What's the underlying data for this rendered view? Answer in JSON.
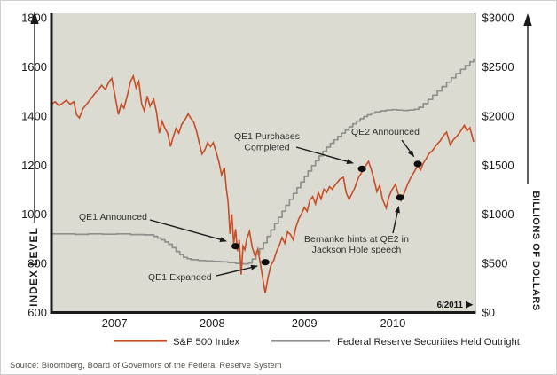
{
  "figure": {
    "source_note": "Source:  Bloomberg, Board of Governors of the Federal Reserve System",
    "end_marker": "6/2011"
  },
  "colors": {
    "plot_background": "#dbdbd2",
    "axis": "#1a1a1a",
    "sp500": "#c64d26",
    "fed": "#8f8f8b",
    "annotation": "#1a1a1a"
  },
  "axes": {
    "left": {
      "title": "INDEX LEVEL",
      "ticks": [
        "1800",
        "1600",
        "1400",
        "1200",
        "1000",
        "800",
        "600"
      ]
    },
    "right": {
      "title": "BILLIONS OF DOLLARS",
      "ticks": [
        "$3000",
        "$2500",
        "$2000",
        "$1500",
        "$1000",
        "$500",
        "$0"
      ]
    },
    "x": {
      "ticks": [
        "2007",
        "2008",
        "2009",
        "2010"
      ]
    }
  },
  "legend": [
    {
      "label": "S&P 500 Index",
      "color": "#c64d26"
    },
    {
      "label": "Federal Reserve Securities Held Outright",
      "color": "#8f8f8b"
    }
  ],
  "chart_data": {
    "type": "line",
    "title": "",
    "x_range": [
      2006.9,
      2011.45
    ],
    "grid": false,
    "legend_position": "bottom",
    "series": [
      {
        "name": "S&P 500 Index",
        "axis": "left",
        "ylim": [
          600,
          1800
        ],
        "color": "#c64d26",
        "style": "line",
        "points": [
          [
            2006.9,
            1448
          ],
          [
            2006.94,
            1458
          ],
          [
            2006.98,
            1442
          ],
          [
            2007.02,
            1452
          ],
          [
            2007.06,
            1464
          ],
          [
            2007.1,
            1448
          ],
          [
            2007.14,
            1458
          ],
          [
            2007.17,
            1405
          ],
          [
            2007.2,
            1392
          ],
          [
            2007.24,
            1430
          ],
          [
            2007.28,
            1448
          ],
          [
            2007.32,
            1468
          ],
          [
            2007.36,
            1488
          ],
          [
            2007.4,
            1505
          ],
          [
            2007.44,
            1525
          ],
          [
            2007.48,
            1508
          ],
          [
            2007.52,
            1540
          ],
          [
            2007.55,
            1553
          ],
          [
            2007.58,
            1490
          ],
          [
            2007.62,
            1406
          ],
          [
            2007.65,
            1448
          ],
          [
            2007.68,
            1432
          ],
          [
            2007.72,
            1490
          ],
          [
            2007.75,
            1540
          ],
          [
            2007.78,
            1562
          ],
          [
            2007.81,
            1515
          ],
          [
            2007.84,
            1540
          ],
          [
            2007.87,
            1450
          ],
          [
            2007.9,
            1420
          ],
          [
            2007.93,
            1481
          ],
          [
            2007.96,
            1440
          ],
          [
            2008.0,
            1468
          ],
          [
            2008.03,
            1415
          ],
          [
            2008.06,
            1330
          ],
          [
            2008.09,
            1378
          ],
          [
            2008.12,
            1350
          ],
          [
            2008.15,
            1330
          ],
          [
            2008.18,
            1276
          ],
          [
            2008.21,
            1315
          ],
          [
            2008.24,
            1350
          ],
          [
            2008.27,
            1330
          ],
          [
            2008.3,
            1365
          ],
          [
            2008.34,
            1388
          ],
          [
            2008.37,
            1408
          ],
          [
            2008.4,
            1390
          ],
          [
            2008.43,
            1375
          ],
          [
            2008.46,
            1340
          ],
          [
            2008.49,
            1290
          ],
          [
            2008.52,
            1245
          ],
          [
            2008.55,
            1262
          ],
          [
            2008.58,
            1292
          ],
          [
            2008.61,
            1275
          ],
          [
            2008.64,
            1292
          ],
          [
            2008.67,
            1255
          ],
          [
            2008.7,
            1215
          ],
          [
            2008.73,
            1160
          ],
          [
            2008.76,
            1190
          ],
          [
            2008.78,
            1106
          ],
          [
            2008.8,
            1050
          ],
          [
            2008.82,
            920
          ],
          [
            2008.84,
            1000
          ],
          [
            2008.86,
            880
          ],
          [
            2008.88,
            940
          ],
          [
            2008.9,
            850
          ],
          [
            2008.92,
            895
          ],
          [
            2008.94,
            755
          ],
          [
            2008.96,
            870
          ],
          [
            2008.98,
            855
          ],
          [
            2009.0,
            900
          ],
          [
            2009.03,
            930
          ],
          [
            2009.06,
            865
          ],
          [
            2009.09,
            828
          ],
          [
            2009.12,
            858
          ],
          [
            2009.15,
            792
          ],
          [
            2009.18,
            722
          ],
          [
            2009.2,
            680
          ],
          [
            2009.23,
            745
          ],
          [
            2009.26,
            792
          ],
          [
            2009.29,
            812
          ],
          [
            2009.32,
            848
          ],
          [
            2009.35,
            872
          ],
          [
            2009.38,
            905
          ],
          [
            2009.41,
            882
          ],
          [
            2009.44,
            928
          ],
          [
            2009.47,
            918
          ],
          [
            2009.5,
            896
          ],
          [
            2009.53,
            948
          ],
          [
            2009.56,
            982
          ],
          [
            2009.59,
            1002
          ],
          [
            2009.62,
            1028
          ],
          [
            2009.65,
            1012
          ],
          [
            2009.68,
            1058
          ],
          [
            2009.71,
            1072
          ],
          [
            2009.74,
            1042
          ],
          [
            2009.77,
            1088
          ],
          [
            2009.8,
            1062
          ],
          [
            2009.83,
            1102
          ],
          [
            2009.86,
            1088
          ],
          [
            2009.89,
            1112
          ],
          [
            2009.92,
            1102
          ],
          [
            2009.95,
            1118
          ],
          [
            2010.0,
            1142
          ],
          [
            2010.04,
            1150
          ],
          [
            2010.07,
            1088
          ],
          [
            2010.1,
            1060
          ],
          [
            2010.13,
            1082
          ],
          [
            2010.16,
            1106
          ],
          [
            2010.2,
            1148
          ],
          [
            2010.24,
            1172
          ],
          [
            2010.27,
            1192
          ],
          [
            2010.31,
            1215
          ],
          [
            2010.34,
            1182
          ],
          [
            2010.37,
            1140
          ],
          [
            2010.4,
            1092
          ],
          [
            2010.43,
            1118
          ],
          [
            2010.46,
            1062
          ],
          [
            2010.5,
            1025
          ],
          [
            2010.53,
            1072
          ],
          [
            2010.56,
            1098
          ],
          [
            2010.6,
            1122
          ],
          [
            2010.63,
            1082
          ],
          [
            2010.66,
            1056
          ],
          [
            2010.7,
            1092
          ],
          [
            2010.73,
            1122
          ],
          [
            2010.76,
            1146
          ],
          [
            2010.8,
            1172
          ],
          [
            2010.84,
            1198
          ],
          [
            2010.87,
            1180
          ],
          [
            2010.9,
            1208
          ],
          [
            2010.93,
            1226
          ],
          [
            2010.96,
            1246
          ],
          [
            2011.0,
            1260
          ],
          [
            2011.04,
            1282
          ],
          [
            2011.08,
            1298
          ],
          [
            2011.12,
            1322
          ],
          [
            2011.15,
            1334
          ],
          [
            2011.19,
            1282
          ],
          [
            2011.22,
            1302
          ],
          [
            2011.26,
            1318
          ],
          [
            2011.3,
            1338
          ],
          [
            2011.34,
            1362
          ],
          [
            2011.37,
            1340
          ],
          [
            2011.4,
            1352
          ],
          [
            2011.44,
            1295
          ]
        ]
      },
      {
        "name": "Federal Reserve Securities Held Outright",
        "axis": "right",
        "ylim": [
          0,
          3000
        ],
        "color": "#8f8f8b",
        "style": "step",
        "points": [
          [
            2006.9,
            800
          ],
          [
            2007.05,
            800
          ],
          [
            2007.15,
            795
          ],
          [
            2007.3,
            800
          ],
          [
            2007.45,
            797
          ],
          [
            2007.6,
            800
          ],
          [
            2007.75,
            793
          ],
          [
            2007.9,
            790
          ],
          [
            2008.0,
            775
          ],
          [
            2008.04,
            758
          ],
          [
            2008.08,
            740
          ],
          [
            2008.12,
            718
          ],
          [
            2008.16,
            695
          ],
          [
            2008.2,
            660
          ],
          [
            2008.24,
            622
          ],
          [
            2008.28,
            588
          ],
          [
            2008.32,
            562
          ],
          [
            2008.36,
            548
          ],
          [
            2008.4,
            538
          ],
          [
            2008.48,
            530
          ],
          [
            2008.56,
            524
          ],
          [
            2008.64,
            520
          ],
          [
            2008.72,
            516
          ],
          [
            2008.8,
            508
          ],
          [
            2008.88,
            500
          ],
          [
            2008.96,
            494
          ],
          [
            2009.02,
            505
          ],
          [
            2009.06,
            545
          ],
          [
            2009.1,
            592
          ],
          [
            2009.14,
            648
          ],
          [
            2009.18,
            710
          ],
          [
            2009.22,
            775
          ],
          [
            2009.26,
            840
          ],
          [
            2009.3,
            905
          ],
          [
            2009.34,
            968
          ],
          [
            2009.38,
            1030
          ],
          [
            2009.42,
            1092
          ],
          [
            2009.46,
            1152
          ],
          [
            2009.5,
            1212
          ],
          [
            2009.54,
            1270
          ],
          [
            2009.58,
            1328
          ],
          [
            2009.62,
            1385
          ],
          [
            2009.66,
            1440
          ],
          [
            2009.7,
            1495
          ],
          [
            2009.74,
            1545
          ],
          [
            2009.78,
            1594
          ],
          [
            2009.82,
            1640
          ],
          [
            2009.86,
            1683
          ],
          [
            2009.9,
            1722
          ],
          [
            2009.94,
            1758
          ],
          [
            2009.98,
            1792
          ],
          [
            2010.02,
            1825
          ],
          [
            2010.06,
            1858
          ],
          [
            2010.1,
            1890
          ],
          [
            2010.14,
            1920
          ],
          [
            2010.18,
            1948
          ],
          [
            2010.22,
            1972
          ],
          [
            2010.26,
            1994
          ],
          [
            2010.3,
            2012
          ],
          [
            2010.34,
            2028
          ],
          [
            2010.38,
            2042
          ],
          [
            2010.44,
            2052
          ],
          [
            2010.5,
            2060
          ],
          [
            2010.56,
            2064
          ],
          [
            2010.62,
            2060
          ],
          [
            2010.68,
            2056
          ],
          [
            2010.74,
            2060
          ],
          [
            2010.8,
            2068
          ],
          [
            2010.85,
            2088
          ],
          [
            2010.9,
            2126
          ],
          [
            2010.95,
            2168
          ],
          [
            2011.0,
            2212
          ],
          [
            2011.05,
            2256
          ],
          [
            2011.1,
            2300
          ],
          [
            2011.15,
            2344
          ],
          [
            2011.2,
            2388
          ],
          [
            2011.25,
            2432
          ],
          [
            2011.3,
            2474
          ],
          [
            2011.35,
            2514
          ],
          [
            2011.4,
            2552
          ],
          [
            2011.44,
            2588
          ]
        ]
      }
    ],
    "annotations": [
      {
        "id": "qe1-announced",
        "lines": [
          "QE1 Announced"
        ],
        "x": 2008.88,
        "value": 870,
        "series": "S&P 500 Index"
      },
      {
        "id": "qe1-expanded",
        "lines": [
          "QE1 Expanded"
        ],
        "x": 2009.2,
        "value": 805,
        "series": "S&P 500 Index"
      },
      {
        "id": "qe1-completed",
        "lines": [
          "QE1 Purchases",
          "Completed"
        ],
        "x": 2010.24,
        "value": 1185,
        "series": "S&P 500 Index"
      },
      {
        "id": "bernanke-jackson-hole",
        "lines": [
          "Bernanke hints at QE2 in",
          "Jackson Hole speech"
        ],
        "x": 2010.65,
        "value": 1068,
        "series": "S&P 500 Index"
      },
      {
        "id": "qe2-announced",
        "lines": [
          "QE2 Announced"
        ],
        "x": 2010.84,
        "value": 1205,
        "series": "S&P 500 Index"
      }
    ]
  }
}
